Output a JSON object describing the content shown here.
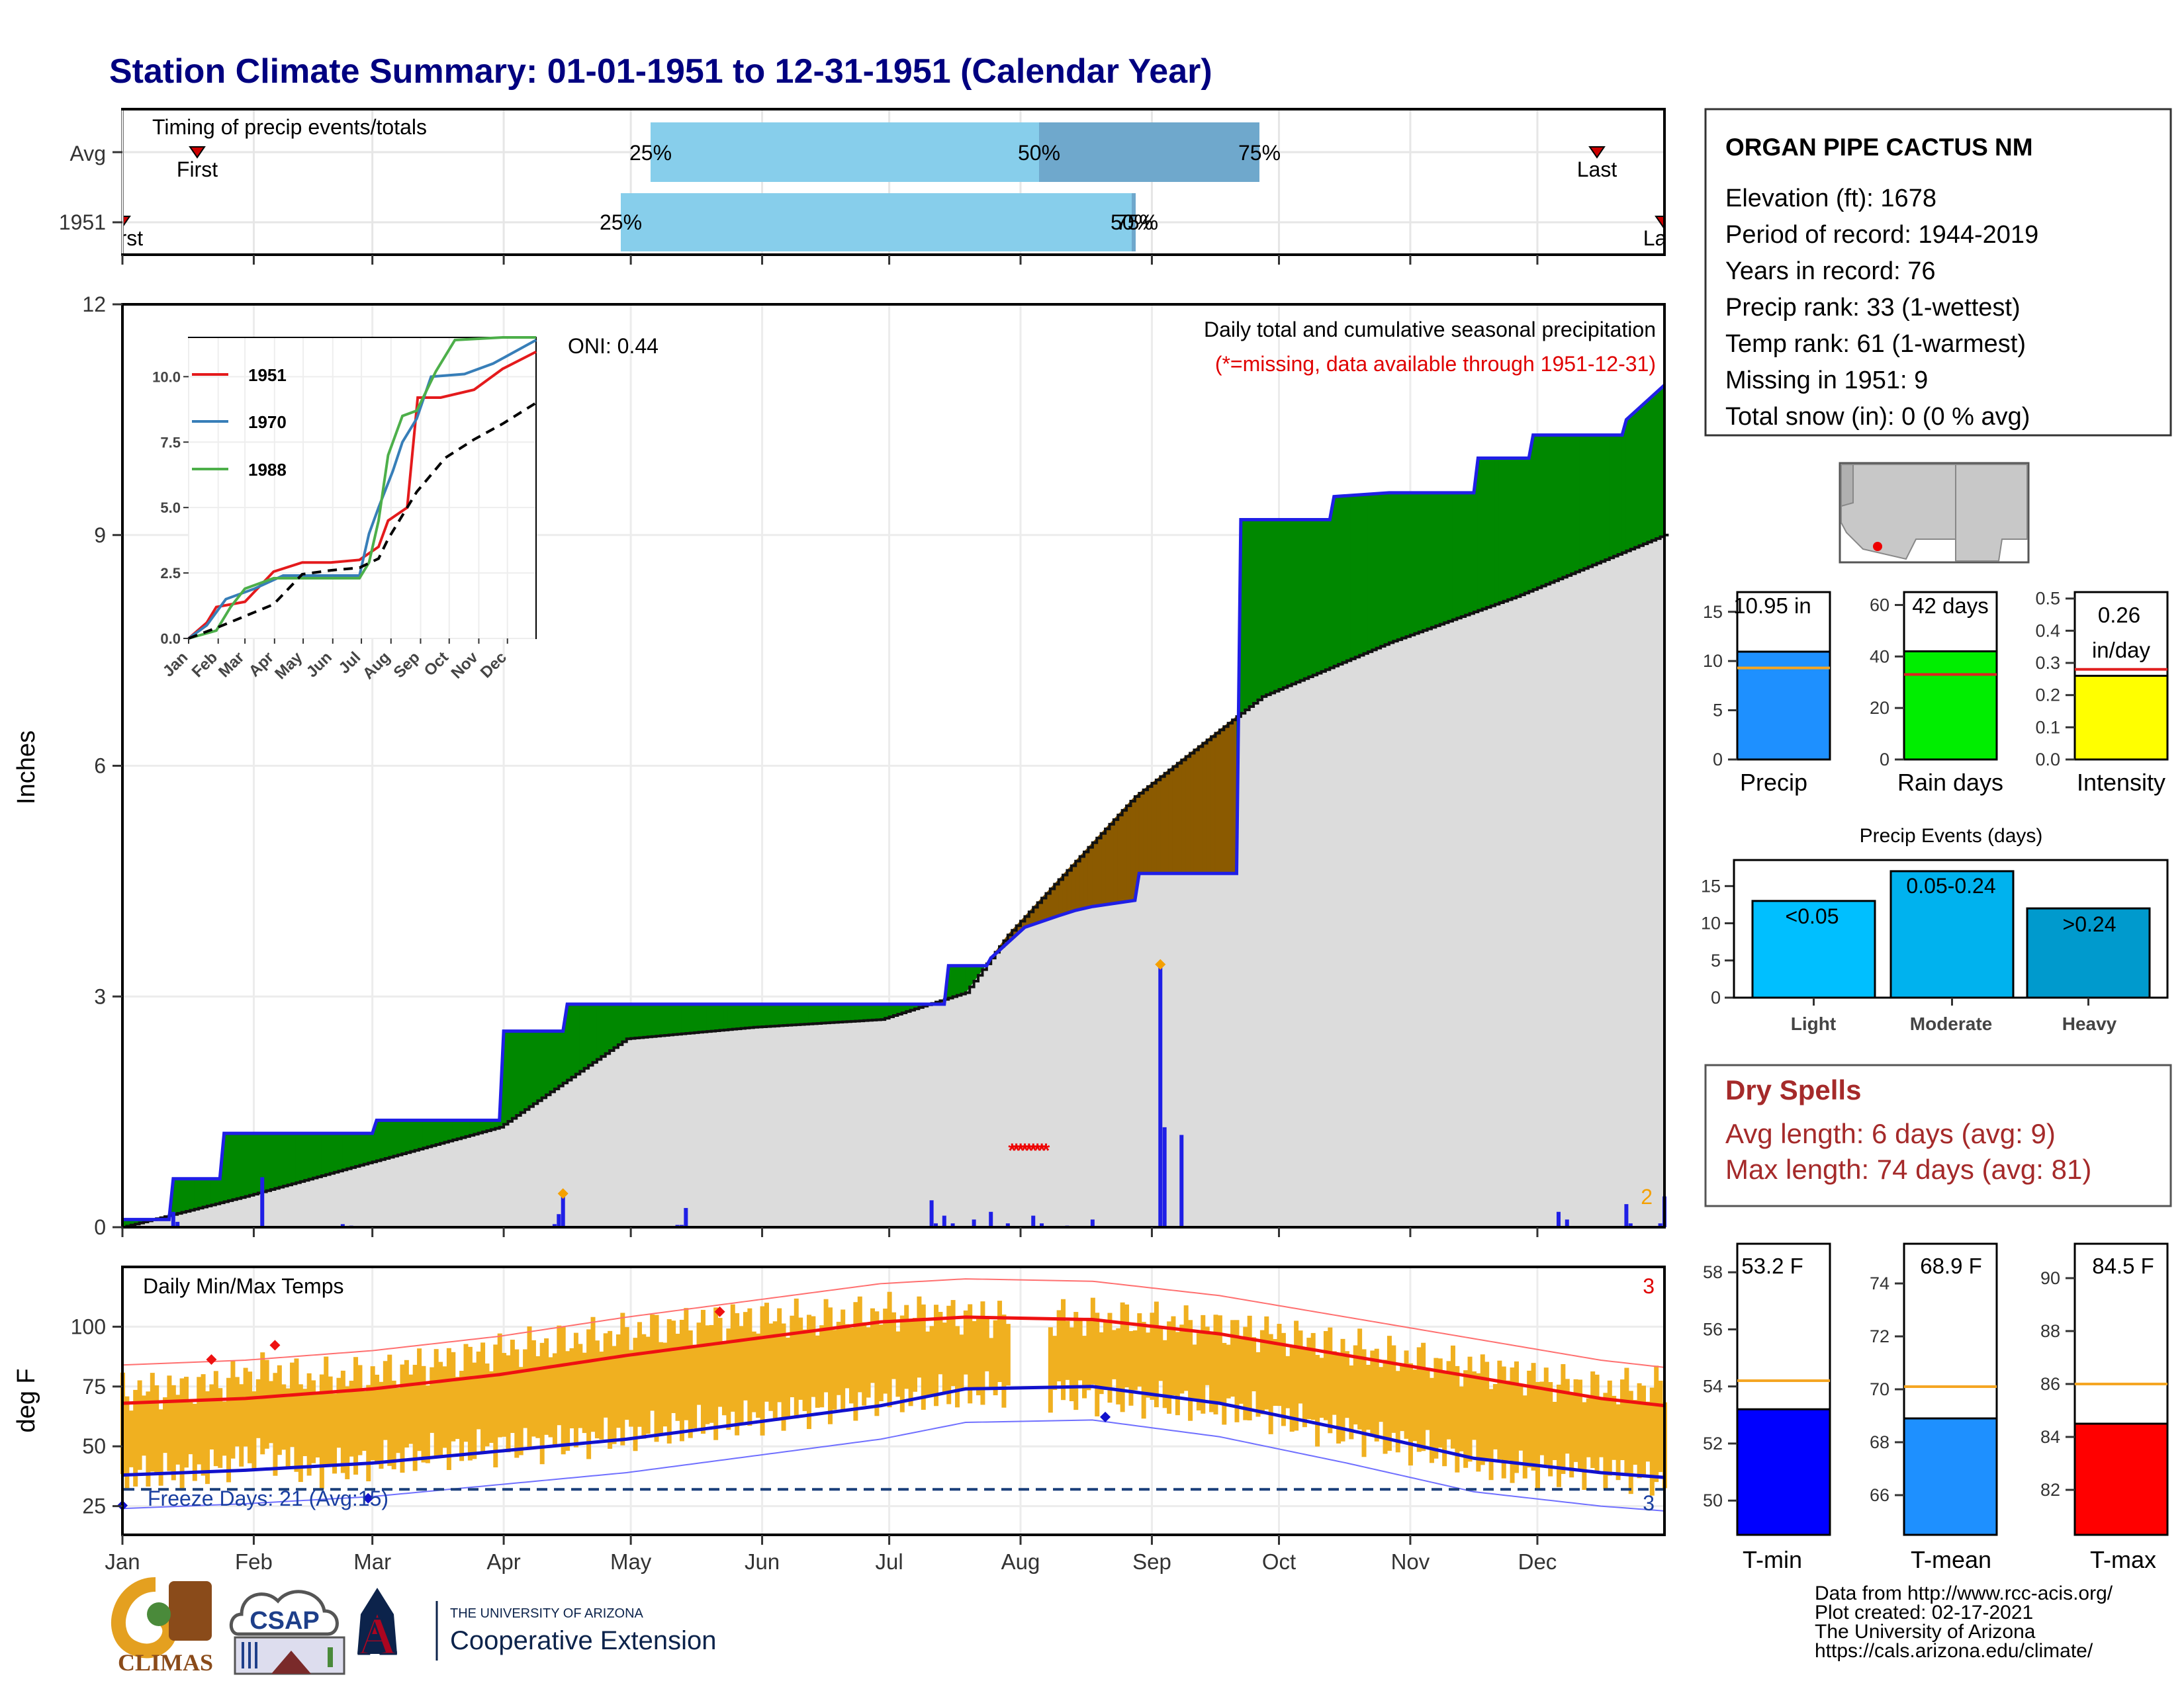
{
  "title": "Station Climate Summary: 01-01-1951 to 12-31-1951 (Calendar Year)",
  "colors": {
    "title": "#000080",
    "precip_blue": "#1f1fe6",
    "above_green": "#008800",
    "below_brown": "#8b5a00",
    "normal_gray": "#dcdcdc",
    "temp_bar": "#f0b020",
    "tmax_line": "#ee1111",
    "tmin_line": "#1111cc",
    "dry_red": "#a52a2a"
  },
  "timing_panel": {
    "title": "Timing of precip events/totals",
    "rows": [
      {
        "label": "Avg",
        "first_label": "First",
        "last_label": "Last",
        "p25": "25%",
        "p50": "50%",
        "p75": "75%"
      },
      {
        "label": "1951",
        "first_label": "First",
        "last_label": "Last",
        "p25": "25%",
        "p50": "50%",
        "p75": "75%"
      }
    ]
  },
  "station": {
    "name": "ORGAN PIPE CACTUS NM",
    "lines": [
      "Elevation (ft): 1678",
      "Period of record: 1944-2019",
      "Years in record: 76",
      "Precip rank: 33 (1-wettest)",
      "Temp rank: 61 (1-warmest)",
      "Missing in 1951: 9",
      "Total snow (in): 0 (0 % avg)"
    ]
  },
  "precip_panel": {
    "ylabel": "Inches",
    "oni": "ONI: 0.44",
    "caption1": "Daily total and cumulative seasonal precipitation",
    "caption2": "(*=missing, data available through 1951-12-31)",
    "count_label": "2",
    "months": [
      "Jan",
      "Feb",
      "Mar",
      "Apr",
      "May",
      "Jun",
      "Jul",
      "Aug",
      "Sep",
      "Oct",
      "Nov",
      "Dec"
    ]
  },
  "inset": {
    "legend": [
      "1951",
      "1970",
      "1988"
    ],
    "months": [
      "Jan",
      "Feb",
      "Mar",
      "Apr",
      "May",
      "Jun",
      "Jul",
      "Aug",
      "Sep",
      "Oct",
      "Nov",
      "Dec"
    ]
  },
  "bars_top": {
    "precip": {
      "value_label": "10.95 in",
      "label": "Precip"
    },
    "raindays": {
      "value_label": "42 days",
      "label": "Rain days"
    },
    "intensity": {
      "value_label_1": "0.26",
      "value_label_2": "in/day",
      "label": "Intensity"
    }
  },
  "events": {
    "title": "Precip Events (days)",
    "bars": [
      {
        "label": "Light",
        "value_label": "<0.05"
      },
      {
        "label": "Moderate",
        "value_label": "0.05-0.24"
      },
      {
        "label": "Heavy",
        "value_label": ">0.24"
      }
    ]
  },
  "dry_spells": {
    "title": "Dry Spells",
    "line1": "Avg length: 6 days (avg: 9)",
    "line2": "Max length: 74 days (avg: 81)"
  },
  "temp_panel": {
    "title": "Daily Min/Max Temps",
    "ylabel": "deg F",
    "freeze": "Freeze Days: 21 (Avg:15)",
    "count_max": "3",
    "count_min": "3"
  },
  "temp_bars": [
    {
      "value_label": "53.2 F",
      "label": "T-min"
    },
    {
      "value_label": "68.9 F",
      "label": "T-mean"
    },
    {
      "value_label": "84.5 F",
      "label": "T-max"
    }
  ],
  "logos": {
    "climas": "CLIMAS",
    "csap": "CSAP",
    "ua_small": "THE UNIVERSITY OF ARIZONA",
    "ua_big": "Cooperative Extension"
  },
  "footer": [
    "Data from http://www.rcc-acis.org/",
    "Plot created: 02-17-2021",
    "The University of Arizona",
    "https://cals.arizona.edu/climate/"
  ],
  "chart_data": [
    {
      "type": "line",
      "name": "cumulative precipitation",
      "ylabel": "Inches",
      "ylim": [
        0,
        12
      ],
      "yticks": [
        0,
        3,
        6,
        9,
        12
      ],
      "series": [
        {
          "name": "1951",
          "x_doy": [
            1,
            12,
            13,
            24,
            25,
            60,
            61,
            90,
            91,
            105,
            106,
            195,
            196,
            205,
            206,
            210,
            214,
            222,
            226,
            230,
            240,
            241,
            264,
            265,
            286,
            287,
            300,
            320,
            321,
            333,
            334,
            355,
            356,
            365
          ],
          "values": [
            0.1,
            0.1,
            0.63,
            0.63,
            1.22,
            1.22,
            1.39,
            1.39,
            2.55,
            2.55,
            2.9,
            2.9,
            3.4,
            3.4,
            3.5,
            3.7,
            3.9,
            4.05,
            4.12,
            4.17,
            4.25,
            4.6,
            4.6,
            9.2,
            9.2,
            9.5,
            9.55,
            9.55,
            10.0,
            10.0,
            10.3,
            10.3,
            10.5,
            10.95
          ]
        },
        {
          "name": "average",
          "x_doy": [
            1,
            30,
            60,
            90,
            120,
            150,
            180,
            200,
            210,
            220,
            240,
            270,
            300,
            330,
            365
          ],
          "values": [
            0,
            0.4,
            0.85,
            1.3,
            2.45,
            2.6,
            2.7,
            3.05,
            3.8,
            4.4,
            5.6,
            6.9,
            7.6,
            8.2,
            9.0
          ]
        }
      ]
    },
    {
      "type": "bar",
      "name": "daily precipitation",
      "x_doy": [
        13,
        14,
        34,
        53,
        55,
        103,
        104,
        105,
        132,
        133,
        134,
        192,
        193,
        195,
        197,
        202,
        206,
        210,
        216,
        218,
        224,
        230,
        246,
        247,
        251,
        340,
        342,
        356,
        357,
        364,
        365
      ],
      "values": [
        0.2,
        0.07,
        0.65,
        0.04,
        0.02,
        0.04,
        0.17,
        0.42,
        0.03,
        0.03,
        0.25,
        0.35,
        0.05,
        0.15,
        0.05,
        0.1,
        0.2,
        0.05,
        0.15,
        0.05,
        0.02,
        0.1,
        3.4,
        1.3,
        1.2,
        0.2,
        0.1,
        0.3,
        0.05,
        0.05,
        0.4
      ],
      "missing_doy": [
        211,
        212,
        213,
        214,
        215,
        216,
        217,
        218,
        219
      ]
    },
    {
      "type": "line",
      "name": "inset cumulative precipitation",
      "ylim": [
        0,
        11.5
      ],
      "yticks": [
        0.0,
        2.5,
        5.0,
        7.5,
        10.0
      ],
      "series": [
        {
          "name": "1951",
          "x_doy": [
            1,
            20,
            30,
            60,
            90,
            120,
            150,
            180,
            200,
            210,
            230,
            241,
            265,
            300,
            330,
            365
          ],
          "values": [
            0,
            0.6,
            1.2,
            1.4,
            2.55,
            2.9,
            2.9,
            3.0,
            3.5,
            4.5,
            5.0,
            9.2,
            9.2,
            9.5,
            10.3,
            10.95
          ]
        },
        {
          "name": "1970",
          "x_doy": [
            1,
            20,
            40,
            70,
            100,
            150,
            180,
            190,
            200,
            215,
            225,
            240,
            255,
            290,
            320,
            365
          ],
          "values": [
            0,
            0.5,
            1.5,
            1.9,
            2.4,
            2.4,
            2.4,
            4.0,
            5.0,
            6.4,
            7.5,
            8.4,
            10.0,
            10.1,
            10.5,
            11.4
          ]
        },
        {
          "name": "1988",
          "x_doy": [
            1,
            30,
            45,
            60,
            90,
            150,
            180,
            190,
            200,
            210,
            225,
            240,
            260,
            280,
            330,
            365
          ],
          "values": [
            0,
            0.3,
            1.2,
            1.9,
            2.3,
            2.3,
            2.3,
            2.9,
            4.5,
            7.0,
            8.5,
            8.7,
            10.2,
            11.4,
            11.5,
            11.5
          ]
        },
        {
          "name": "average",
          "x_doy": [
            1,
            30,
            60,
            90,
            120,
            150,
            180,
            200,
            210,
            220,
            240,
            270,
            300,
            330,
            365
          ],
          "values": [
            0,
            0.4,
            0.85,
            1.3,
            2.45,
            2.6,
            2.7,
            3.05,
            3.8,
            4.4,
            5.6,
            6.9,
            7.6,
            8.2,
            9.0
          ]
        }
      ]
    },
    {
      "type": "line",
      "name": "daily min/max temps",
      "ylabel": "deg F",
      "ylim": [
        13,
        125
      ],
      "yticks": [
        25,
        50,
        75,
        100
      ],
      "freeze_line": 32,
      "series": [
        {
          "name": "avg max",
          "x_doy": [
            1,
            30,
            60,
            90,
            120,
            150,
            180,
            200,
            230,
            260,
            290,
            320,
            350,
            365
          ],
          "values": [
            68,
            70,
            74,
            80,
            88,
            95,
            102,
            104,
            103,
            97,
            88,
            79,
            70,
            67
          ]
        },
        {
          "name": "avg min",
          "x_doy": [
            1,
            30,
            60,
            90,
            120,
            150,
            180,
            200,
            230,
            260,
            290,
            320,
            350,
            365
          ],
          "values": [
            38,
            40,
            43,
            48,
            53,
            60,
            67,
            74,
            75,
            68,
            57,
            45,
            39,
            37
          ]
        },
        {
          "name": "1951 max",
          "x_doy": [
            1,
            20,
            35,
            45,
            60,
            75,
            90,
            110,
            130,
            150,
            165,
            180,
            210,
            240,
            270,
            300,
            330,
            350,
            365
          ],
          "values": [
            73,
            75,
            82,
            78,
            80,
            85,
            90,
            95,
            100,
            104,
            103,
            106,
            104,
            103,
            98,
            88,
            80,
            74,
            75
          ]
        },
        {
          "name": "1951 min",
          "x_doy": [
            1,
            20,
            35,
            45,
            60,
            75,
            90,
            110,
            130,
            150,
            165,
            180,
            210,
            240,
            270,
            300,
            330,
            350,
            365
          ],
          "values": [
            38,
            40,
            48,
            40,
            43,
            47,
            50,
            53,
            57,
            62,
            66,
            70,
            74,
            70,
            64,
            52,
            40,
            40,
            36
          ]
        }
      ]
    },
    {
      "type": "bar",
      "name": "summary bars",
      "categories": [
        "Precip",
        "Rain days",
        "Intensity",
        "Light",
        "Moderate",
        "Heavy",
        "T-min",
        "T-mean",
        "T-max"
      ],
      "values": [
        10.95,
        42,
        0.26,
        13,
        17,
        12,
        53.2,
        68.9,
        84.5
      ],
      "averages": [
        9.3,
        33,
        0.28,
        null,
        null,
        null,
        54.2,
        70.1,
        86.0
      ]
    }
  ]
}
